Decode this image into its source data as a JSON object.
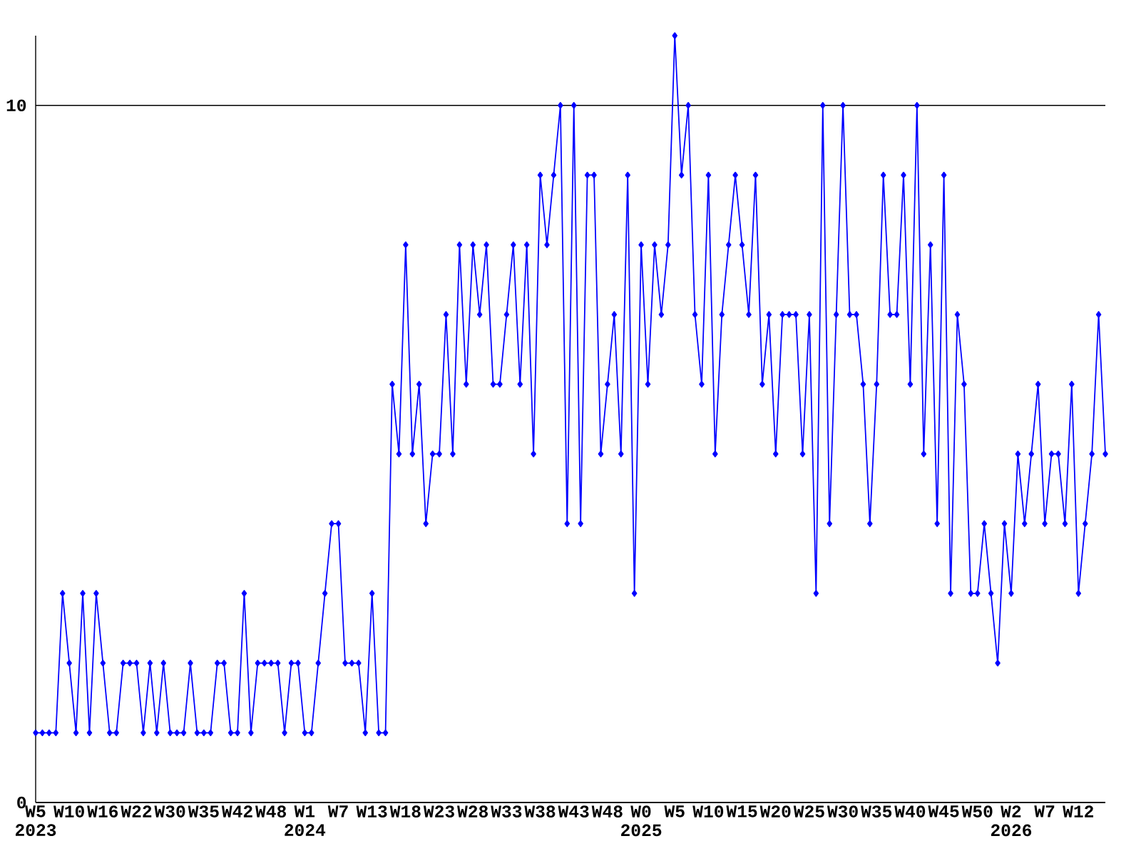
{
  "chart_data": {
    "type": "line",
    "categories": [
      "W5 2023",
      null,
      null,
      null,
      null,
      "W10",
      null,
      null,
      null,
      null,
      "W16",
      null,
      null,
      null,
      null,
      "W22",
      null,
      null,
      null,
      null,
      "W30",
      null,
      null,
      null,
      null,
      "W35",
      null,
      null,
      null,
      null,
      "W42",
      null,
      null,
      null,
      null,
      "W48",
      null,
      null,
      null,
      null,
      "W1 2024",
      null,
      null,
      null,
      null,
      "W7",
      null,
      null,
      null,
      null,
      "W13",
      null,
      null,
      null,
      null,
      "W18",
      null,
      null,
      null,
      null,
      "W23",
      null,
      null,
      null,
      null,
      "W28",
      null,
      null,
      null,
      null,
      "W33",
      null,
      null,
      null,
      null,
      "W38",
      null,
      null,
      null,
      null,
      "W43",
      null,
      null,
      null,
      null,
      "W48",
      null,
      null,
      null,
      null,
      "W0 2025",
      null,
      null,
      null,
      null,
      "W5",
      null,
      null,
      null,
      null,
      "W10",
      null,
      null,
      null,
      null,
      "W15",
      null,
      null,
      null,
      null,
      "W20",
      null,
      null,
      null,
      null,
      "W25",
      null,
      null,
      null,
      null,
      "W30",
      null,
      null,
      null,
      null,
      "W35",
      null,
      null,
      null,
      null,
      "W40",
      null,
      null,
      null,
      null,
      "W45",
      null,
      null,
      null,
      null,
      "W50",
      null,
      null,
      null,
      null,
      "W2 2026",
      null,
      null,
      null,
      null,
      "W7",
      null,
      null,
      null,
      null,
      "W12",
      null,
      null,
      null,
      null
    ],
    "values": [
      1,
      1,
      1,
      1,
      3,
      2,
      1,
      3,
      1,
      3,
      2,
      1,
      1,
      2,
      2,
      2,
      1,
      2,
      1,
      2,
      1,
      1,
      1,
      2,
      1,
      1,
      1,
      2,
      2,
      1,
      1,
      3,
      1,
      2,
      2,
      2,
      2,
      1,
      2,
      2,
      1,
      1,
      2,
      3,
      4,
      4,
      2,
      2,
      2,
      1,
      3,
      1,
      1,
      6,
      5,
      8,
      5,
      6,
      4,
      5,
      5,
      7,
      5,
      8,
      6,
      8,
      7,
      8,
      6,
      6,
      7,
      8,
      6,
      8,
      5,
      9,
      8,
      9,
      10,
      4,
      10,
      4,
      9,
      9,
      5,
      6,
      7,
      5,
      9,
      3,
      8,
      6,
      8,
      7,
      8,
      11,
      9,
      10,
      7,
      6,
      9,
      5,
      7,
      8,
      9,
      8,
      7,
      9,
      6,
      7,
      5,
      7,
      7,
      7,
      5,
      7,
      3,
      10,
      4,
      7,
      10,
      7,
      7,
      6,
      4,
      6,
      9,
      7,
      7,
      9,
      6,
      10,
      5,
      8,
      4,
      9,
      3,
      7,
      6,
      3,
      3,
      4,
      3,
      2,
      4,
      3,
      5,
      4,
      5,
      6,
      4,
      5,
      5,
      4,
      6,
      3,
      4,
      5,
      7,
      5
    ],
    "color": "#0000ff",
    "ylim": [
      0,
      11
    ],
    "yticks": [
      0,
      10
    ],
    "grid": "y",
    "marker": "diamond",
    "line_style": "solid"
  }
}
